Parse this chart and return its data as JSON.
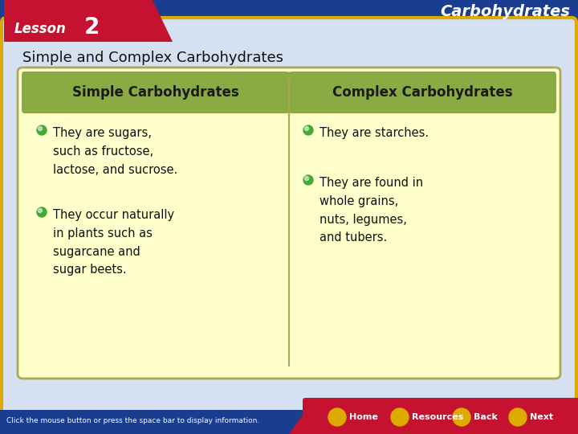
{
  "title_topic": "Carbohydrates",
  "lesson_label": "Lesson",
  "lesson_number": "2",
  "slide_subtitle": "Simple and Complex Carbohydrates",
  "col1_header": "Simple Carbohydrates",
  "col2_header": "Complex Carbohydrates",
  "col1_bullets": [
    "They are sugars,\nsuch as fructose,\nlactose, and sucrose.",
    "They occur naturally\nin plants such as\nsugarcane and\nsugar beets."
  ],
  "col2_bullets": [
    "They are starches.",
    "They are found in\nwhole grains,\nnuts, legumes,\nand tubers."
  ],
  "bg_blue_dark": "#1a3d8f",
  "bg_blue_mid": "#3a6bbf",
  "content_bg": "#ccd8ee",
  "header_green": "#8aaa44",
  "cell_yellow": "#ffffcc",
  "border_olive": "#aaaa55",
  "banner_red": "#c41230",
  "title_white": "#ffffff",
  "header_text_color": "#1a1a1a",
  "body_text_color": "#111111",
  "bullet_green": "#44aa33",
  "footer_blue": "#1a3d8f",
  "gold": "#ddaa00",
  "footer_text": "Click the mouse button or press the space bar to display information.",
  "nav_labels": [
    "Home",
    "Resources",
    "Back",
    "Next"
  ]
}
